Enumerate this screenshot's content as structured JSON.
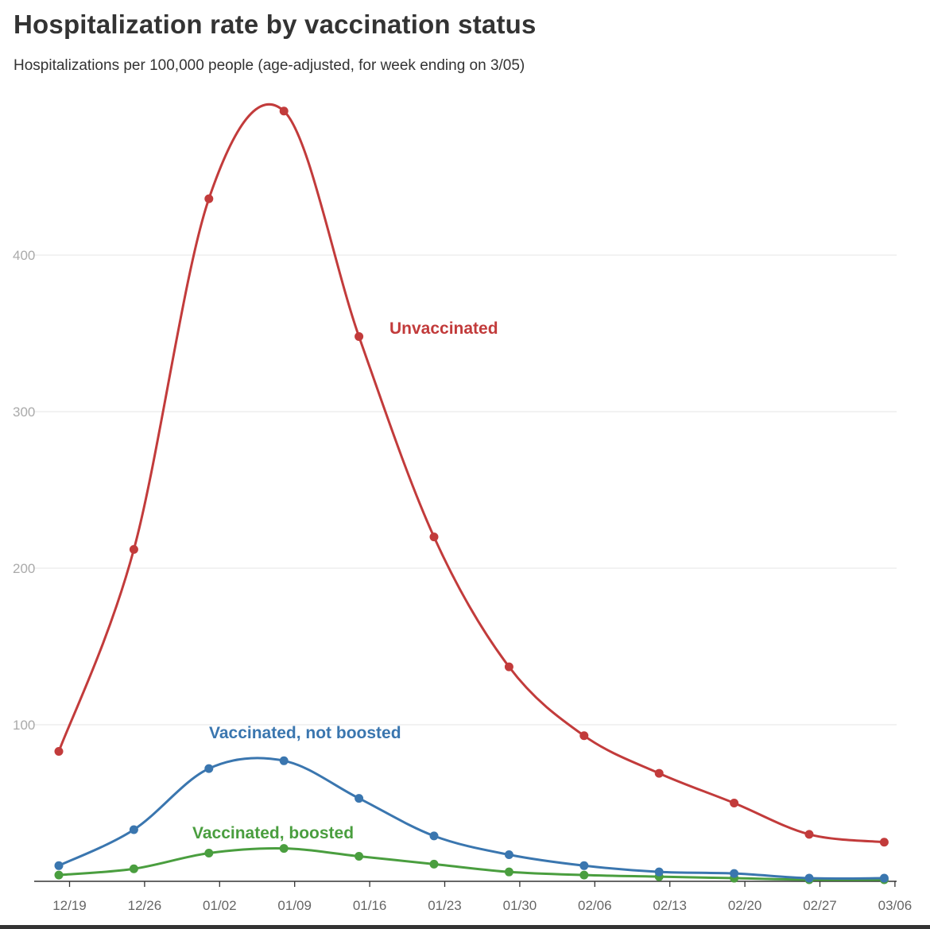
{
  "chart_data": {
    "type": "line",
    "title": "Hospitalization rate by vaccination status",
    "subtitle": "Hospitalizations per 100,000 people (age-adjusted, for week ending on 3/05)",
    "xlabel": "",
    "ylabel": "",
    "x_ticks": [
      "12/19",
      "12/26",
      "01/02",
      "01/09",
      "01/16",
      "01/23",
      "01/30",
      "02/06",
      "02/13",
      "02/20",
      "02/27",
      "03/06"
    ],
    "y_ticks": [
      100,
      200,
      300,
      400
    ],
    "ylim": [
      0,
      500
    ],
    "grid": true,
    "series": [
      {
        "name": "Unvaccinated",
        "color": "#c23b3b",
        "x": [
          "12/18",
          "12/25",
          "01/01",
          "01/08",
          "01/15",
          "01/22",
          "01/29",
          "02/05",
          "02/12",
          "02/19",
          "02/26",
          "03/05"
        ],
        "values": [
          83,
          212,
          436,
          492,
          348,
          220,
          137,
          93,
          69,
          50,
          30,
          25
        ]
      },
      {
        "name": "Vaccinated, not boosted",
        "color": "#3a76af",
        "x": [
          "12/18",
          "12/25",
          "01/01",
          "01/08",
          "01/15",
          "01/22",
          "01/29",
          "02/05",
          "02/12",
          "02/19",
          "02/26",
          "03/05"
        ],
        "values": [
          10,
          33,
          72,
          77,
          53,
          29,
          17,
          10,
          6,
          5,
          2,
          2
        ]
      },
      {
        "name": "Vaccinated, boosted",
        "color": "#4a9e3f",
        "x": [
          "12/18",
          "12/25",
          "01/01",
          "01/08",
          "01/15",
          "01/22",
          "01/29",
          "02/05",
          "02/12",
          "02/19",
          "02/26",
          "03/05"
        ],
        "values": [
          4,
          8,
          18,
          21,
          16,
          11,
          6,
          4,
          3,
          2,
          1,
          1
        ]
      }
    ]
  }
}
